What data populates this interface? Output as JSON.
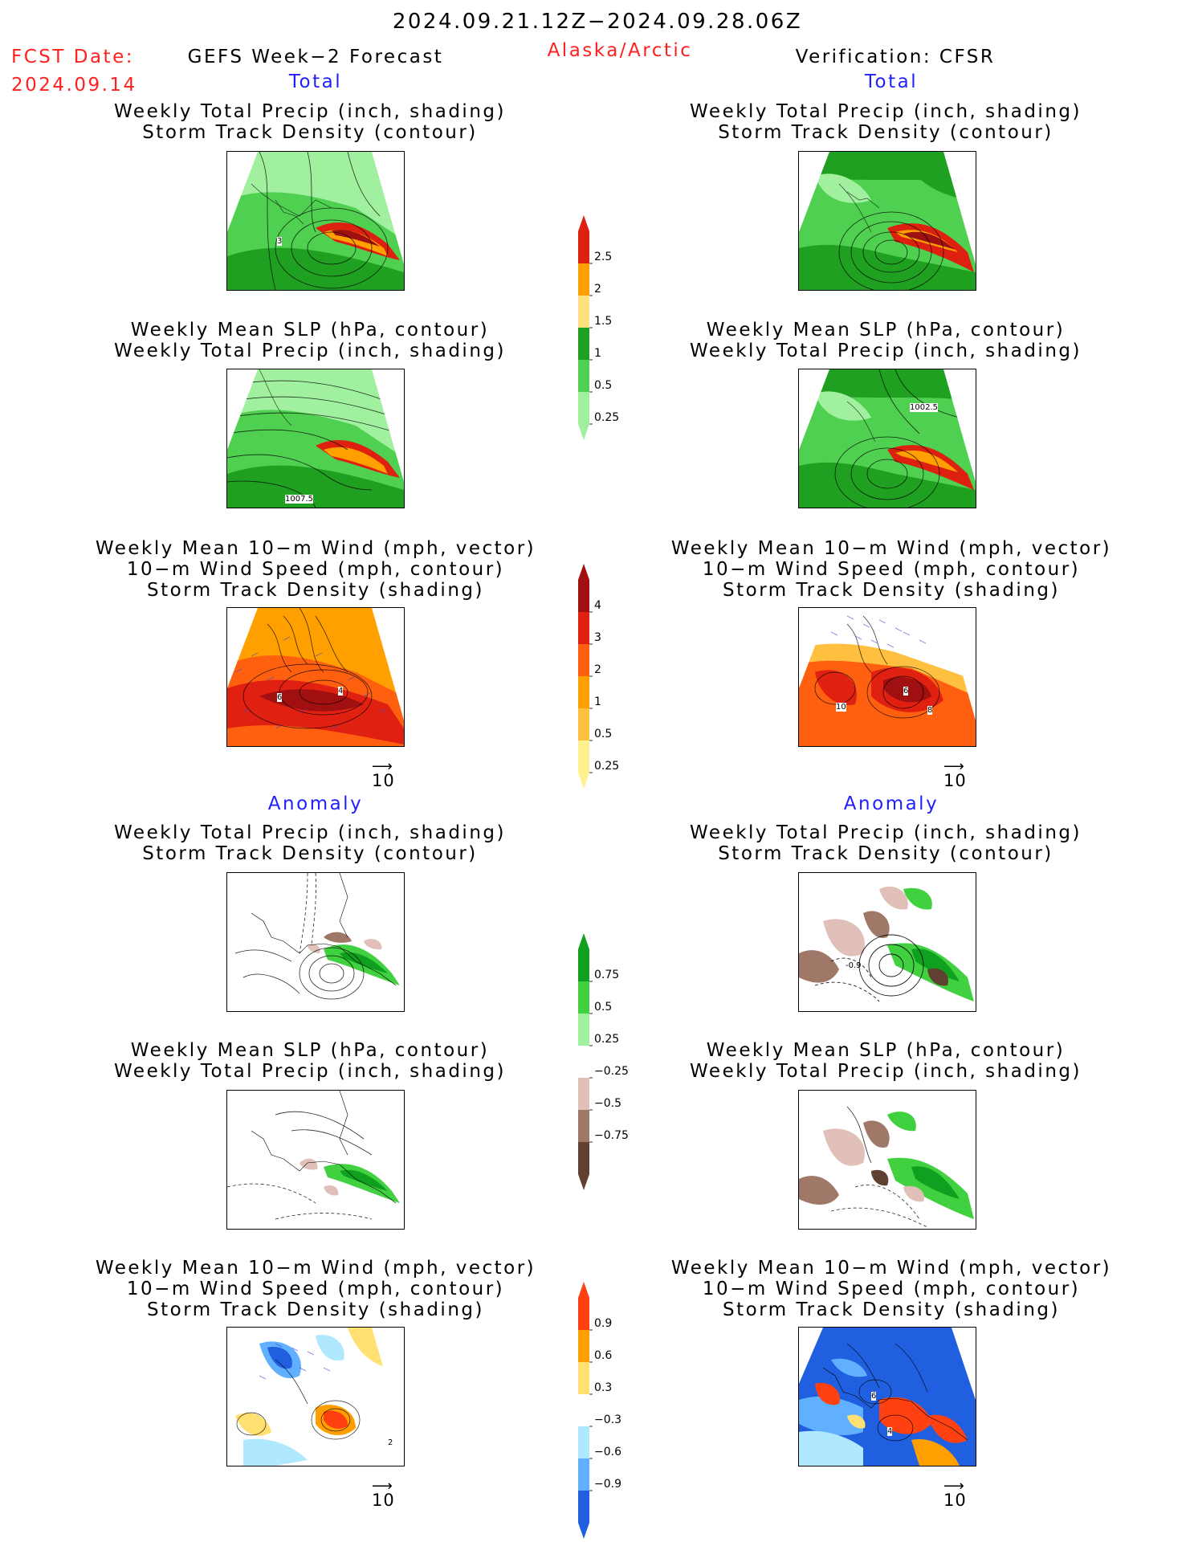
{
  "header": {
    "period": "2024.09.21.12Z−2024.09.28.06Z",
    "fcst_label": "FCST Date:",
    "fcst_date": "2024.09.14",
    "model": "GEFS Week−2 Forecast",
    "region": "Alaska/Arctic",
    "verification": "Verification: CFSR"
  },
  "sections": {
    "total_label": "Total",
    "anomaly_label": "Anomaly"
  },
  "titles": {
    "precip_track": [
      "Weekly Total Precip (inch, shading)",
      "Storm Track Density (contour)"
    ],
    "slp_precip": [
      "Weekly Mean SLP (hPa, contour)",
      "Weekly Total Precip (inch, shading)"
    ],
    "wind_track": [
      "Weekly Mean 10−m Wind (mph, vector)",
      "10−m Wind Speed (mph, contour)",
      "Storm Track Density (shading)"
    ]
  },
  "contour_labels": {
    "fcst_precip_track": "3",
    "fcst_slp": "1007.5",
    "verif_slp": "1002.5",
    "fcst_wind_a": "6",
    "fcst_wind_b": "4",
    "verif_wind_a": "10",
    "verif_wind_b": "6",
    "verif_wind_c": "8",
    "verif_precip_anom": "-0.9",
    "fcst_wind_anom": "2",
    "verif_wind_anom_a": "6",
    "verif_wind_anom_b": "4"
  },
  "vector_key": "10",
  "colorbars": {
    "precip_total": {
      "labels": [
        "2.5",
        "2",
        "1.5",
        "1",
        "0.5",
        "0.25"
      ],
      "colors": [
        "#dd2010",
        "#ffa000",
        "#ffe080",
        "#20a020",
        "#50d050",
        "#a0f0a0"
      ]
    },
    "track_total": {
      "labels": [
        "4",
        "3",
        "2",
        "1",
        "0.5",
        "0.25"
      ],
      "colors": [
        "#a01010",
        "#e02010",
        "#ff6010",
        "#ffa000",
        "#ffc040",
        "#fff090"
      ]
    },
    "precip_anom": {
      "labels": [
        "0.75",
        "0.5",
        "0.25",
        "−0.25",
        "−0.5",
        "−0.75"
      ],
      "colors": [
        "#10a020",
        "#40d040",
        "#a0f0a0",
        "#ffffff",
        "#e0c0b8",
        "#a07868",
        "#604030"
      ]
    },
    "track_anom": {
      "labels": [
        "0.9",
        "0.6",
        "0.3",
        "−0.3",
        "−0.6",
        "−0.9"
      ],
      "colors": [
        "#ff4010",
        "#ffa000",
        "#ffe070",
        "#ffffff",
        "#b0e8ff",
        "#60b0ff",
        "#2060e0"
      ]
    }
  }
}
